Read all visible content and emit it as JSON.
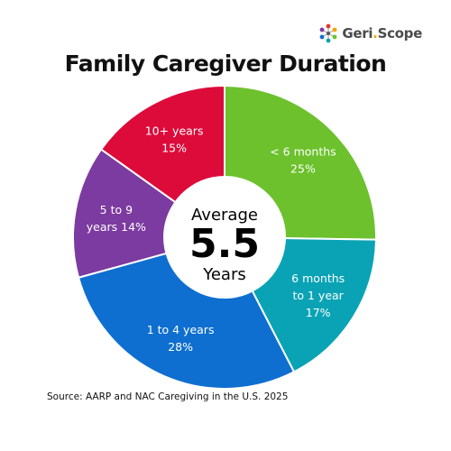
{
  "brand": {
    "name_part1": "Geri",
    "name_dot": ".",
    "name_part2": "Scope",
    "icon": "geriscope-logo-icon"
  },
  "colors": {
    "green": "#6cc12d",
    "teal": "#0aa3b5",
    "blue": "#0e6fd0",
    "purple": "#7c3ba0",
    "red": "#dd0b3a"
  },
  "chart_data": {
    "type": "pie",
    "title": "Family Caregiver Duration",
    "center": {
      "line1": "Average",
      "line2": "5.5",
      "line3": "Years"
    },
    "slices": [
      {
        "label": "< 6 months",
        "value": 25,
        "label_lines": [
          "< 6 months",
          "25%"
        ],
        "color": "#6cc12d"
      },
      {
        "label": "6 months to 1 year",
        "value": 17,
        "label_lines": [
          "6 months",
          "to 1 year",
          "17%"
        ],
        "color": "#0aa3b5"
      },
      {
        "label": "1 to 4 years",
        "value": 28,
        "label_lines": [
          "1 to 4 years",
          "28%"
        ],
        "color": "#0e6fd0"
      },
      {
        "label": "5 to 9 years",
        "value": 14,
        "label_lines": [
          "5 to 9",
          "years 14%"
        ],
        "color": "#7c3ba0"
      },
      {
        "label": "10+ years",
        "value": 15,
        "label_lines": [
          "10+ years",
          "15%"
        ],
        "color": "#dd0b3a"
      }
    ]
  },
  "source": "Source: AARP and NAC Caregiving in the U.S. 2025"
}
